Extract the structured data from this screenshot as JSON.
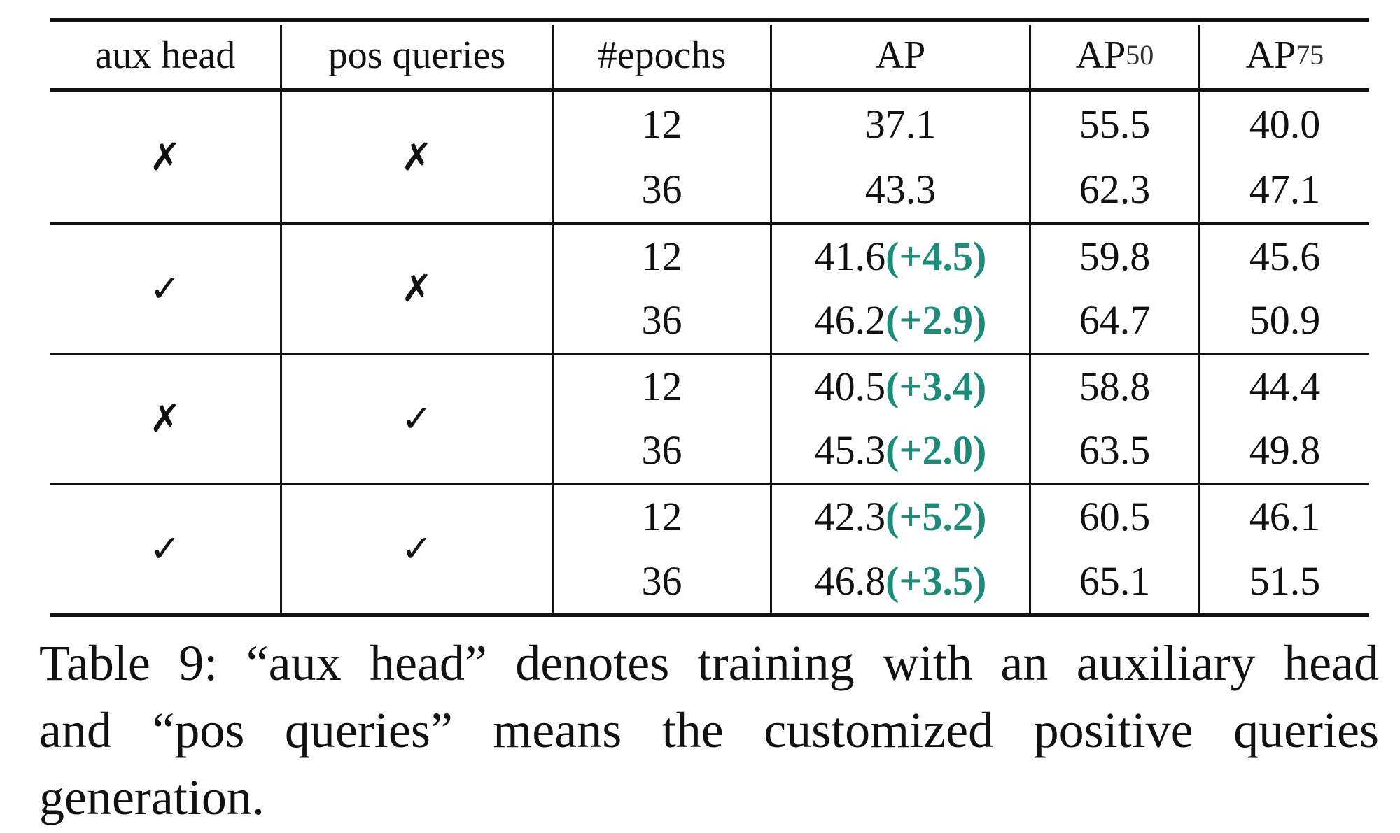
{
  "table": {
    "headers": {
      "aux_head": "aux head",
      "pos_queries": "pos queries",
      "epochs": "#epochs",
      "ap": "AP",
      "ap50_base": "AP",
      "ap50_sub": "50",
      "ap75_base": "AP",
      "ap75_sub": "75"
    },
    "groups": [
      {
        "aux_head": "✗",
        "pos_queries": "✗",
        "rows": [
          {
            "epochs": "12",
            "ap": "37.1",
            "ap_gain": "",
            "ap50": "55.5",
            "ap75": "40.0"
          },
          {
            "epochs": "36",
            "ap": "43.3",
            "ap_gain": "",
            "ap50": "62.3",
            "ap75": "47.1"
          }
        ]
      },
      {
        "aux_head": "✓",
        "pos_queries": "✗",
        "rows": [
          {
            "epochs": "12",
            "ap": "41.6",
            "ap_gain": "(+4.5)",
            "ap50": "59.8",
            "ap75": "45.6"
          },
          {
            "epochs": "36",
            "ap": "46.2",
            "ap_gain": "(+2.9)",
            "ap50": "64.7",
            "ap75": "50.9"
          }
        ]
      },
      {
        "aux_head": "✗",
        "pos_queries": "✓",
        "rows": [
          {
            "epochs": "12",
            "ap": "40.5",
            "ap_gain": "(+3.4)",
            "ap50": "58.8",
            "ap75": "44.4"
          },
          {
            "epochs": "36",
            "ap": "45.3",
            "ap_gain": "(+2.0)",
            "ap50": "63.5",
            "ap75": "49.8"
          }
        ]
      },
      {
        "aux_head": "✓",
        "pos_queries": "✓",
        "rows": [
          {
            "epochs": "12",
            "ap": "42.3",
            "ap_gain": "(+5.2)",
            "ap50": "60.5",
            "ap75": "46.1"
          },
          {
            "epochs": "36",
            "ap": "46.8",
            "ap_gain": "(+3.5)",
            "ap50": "65.1",
            "ap75": "51.5"
          }
        ]
      }
    ],
    "gain_color": "#1e8a7a"
  },
  "caption": {
    "line1": "Table 9: “aux head” denotes training with an auxiliary head",
    "line2": "and “pos queries” means the customized positive queries",
    "line3": "generation."
  }
}
